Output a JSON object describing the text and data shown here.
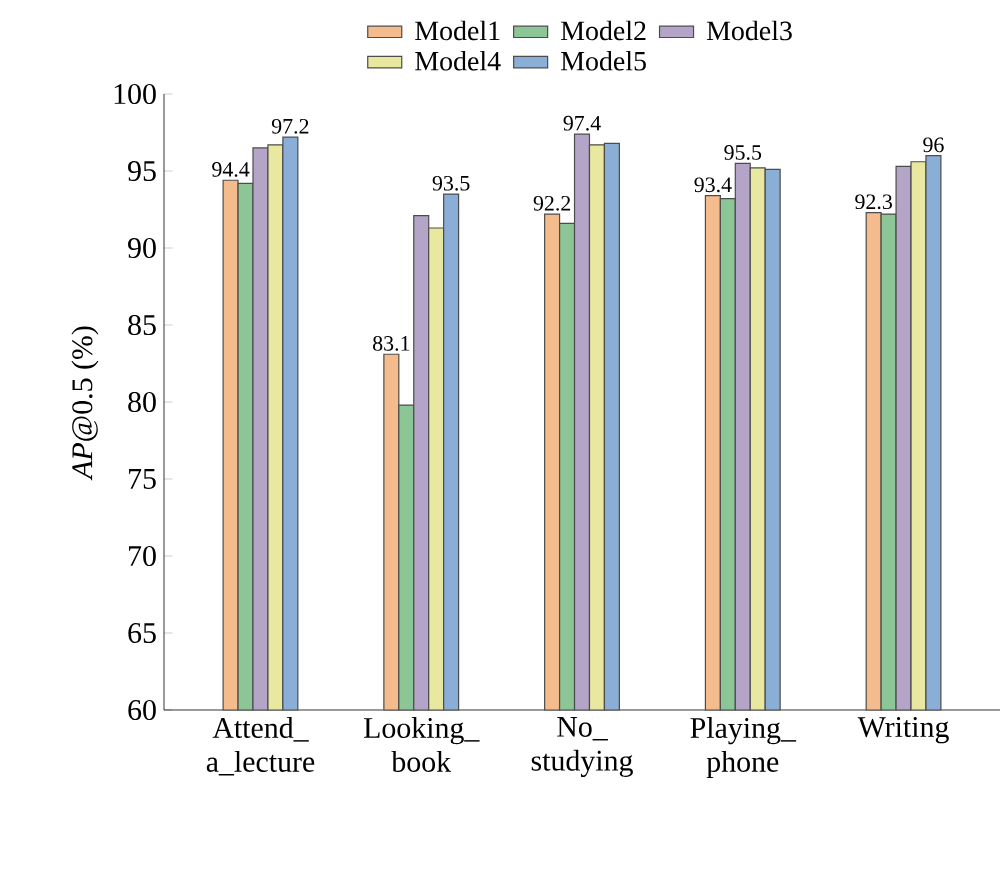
{
  "chart_data": {
    "type": "bar",
    "ylabel": "*AP*@0.5 (%)",
    "categories": [
      "Attend_ a_lecture",
      "Looking_ book",
      "No_ studying",
      "Playing_ phone",
      "Writing"
    ],
    "series": [
      {
        "name": "Model1",
        "color": "#f4bc8c",
        "values": [
          94.4,
          83.1,
          92.2,
          93.4,
          92.3
        ],
        "value_labels": [
          "94.4",
          "83.1",
          "92.2",
          "93.4",
          "92.3"
        ]
      },
      {
        "name": "Model2",
        "color": "#8cc596",
        "values": [
          94.2,
          79.8,
          91.6,
          93.2,
          92.2
        ],
        "value_labels": [
          null,
          null,
          null,
          null,
          null
        ]
      },
      {
        "name": "Model3",
        "color": "#b4a4c8",
        "values": [
          96.5,
          92.1,
          97.4,
          95.5,
          95.3
        ],
        "value_labels": [
          null,
          null,
          "97.4",
          "95.5",
          null
        ]
      },
      {
        "name": "Model4",
        "color": "#e8e8a0",
        "values": [
          96.7,
          91.3,
          96.7,
          95.2,
          95.6
        ],
        "value_labels": [
          null,
          null,
          null,
          null,
          null
        ]
      },
      {
        "name": "Model5",
        "color": "#8aaed6",
        "values": [
          97.2,
          93.5,
          96.8,
          95.1,
          96
        ],
        "value_labels": [
          "97.2",
          "93.5",
          null,
          null,
          "96"
        ]
      }
    ],
    "ylim": [
      60,
      100
    ],
    "yticks": [
      60,
      65,
      70,
      75,
      80,
      85,
      90,
      95,
      100
    ],
    "grid": false,
    "legend": "top"
  }
}
